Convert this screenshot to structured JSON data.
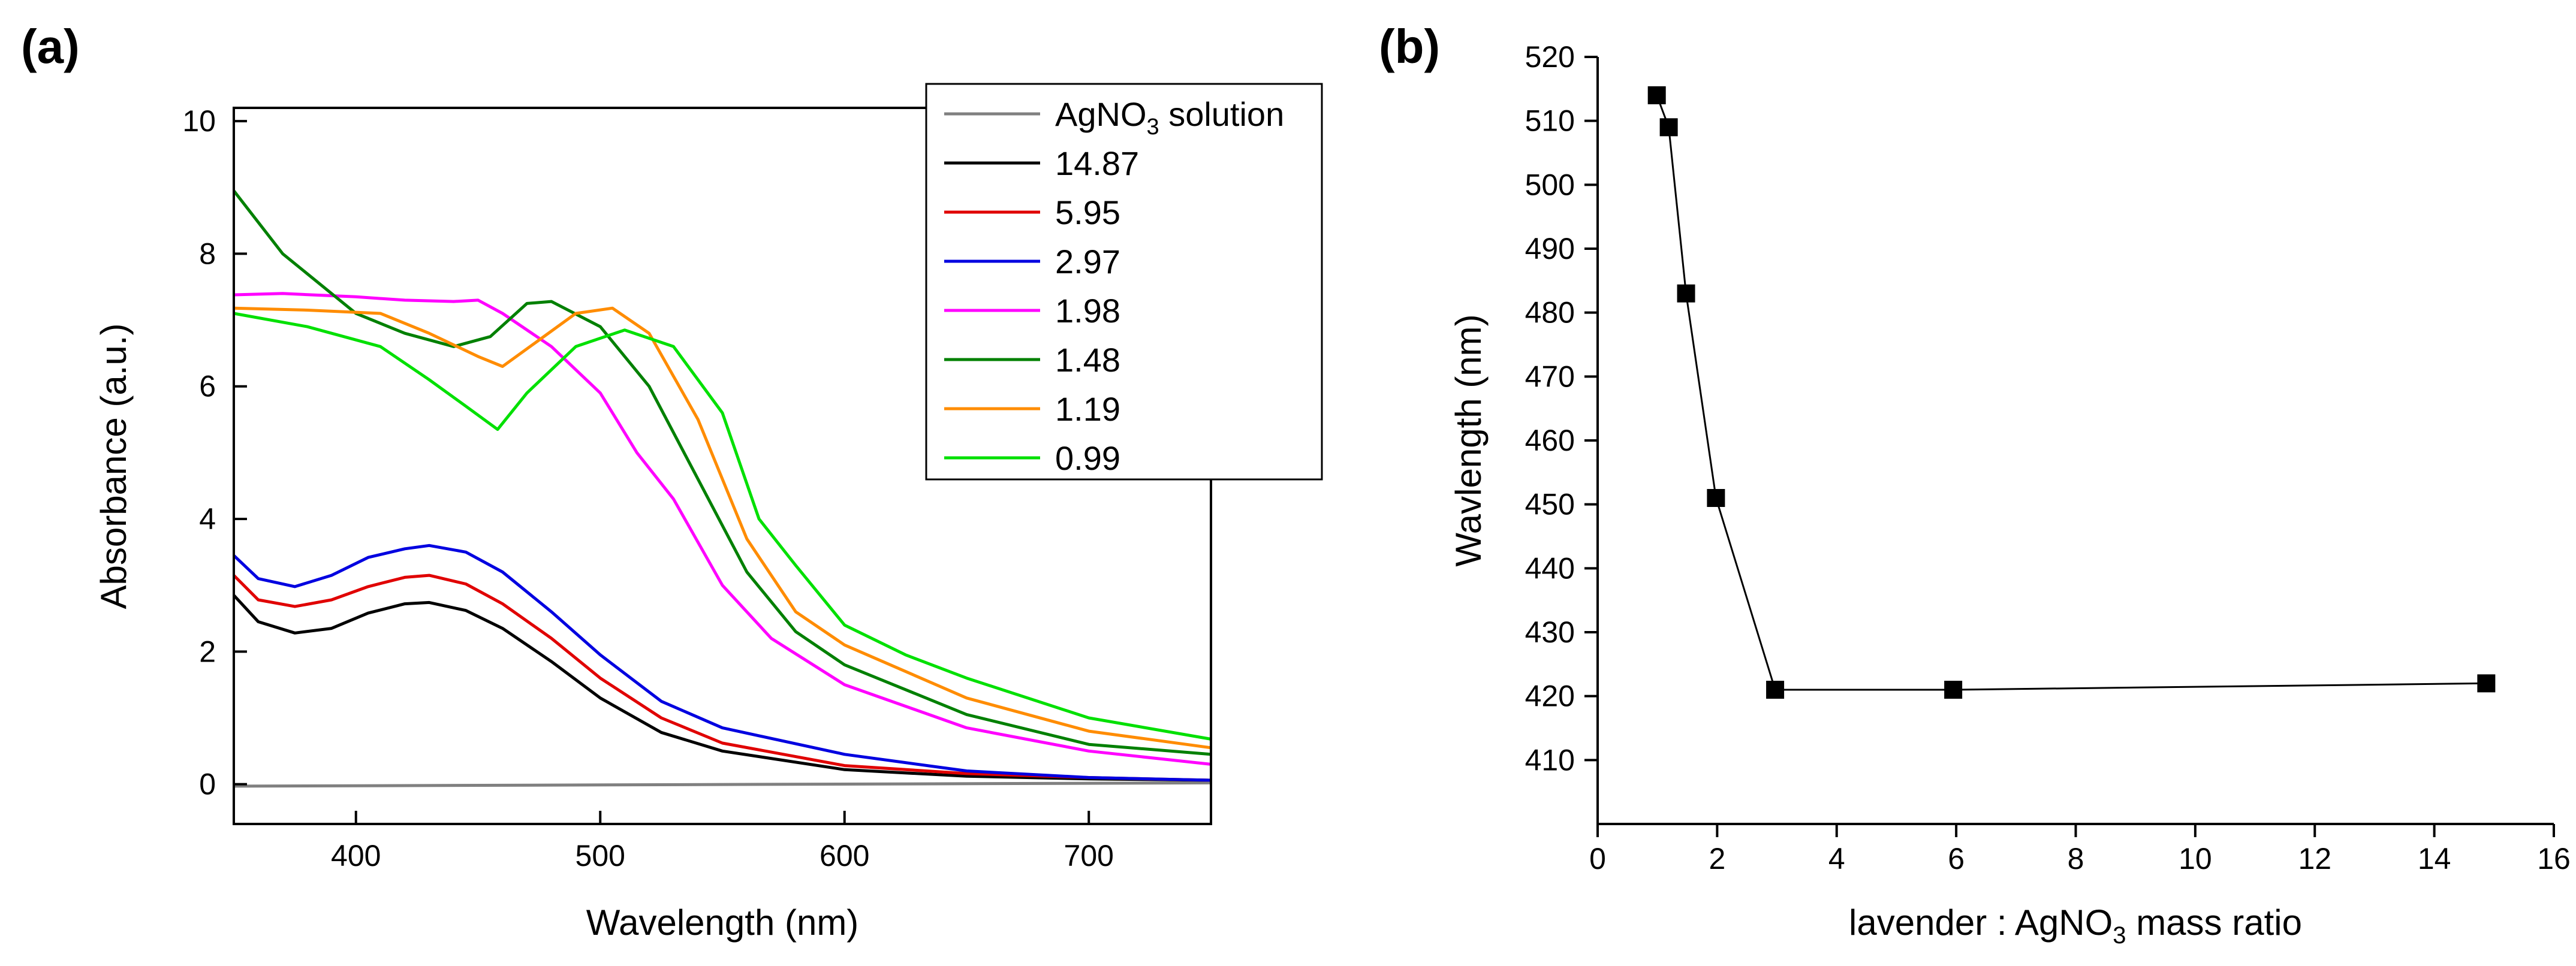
{
  "chart_data": [
    {
      "panel_label": "(a)",
      "type": "line",
      "xlabel": "Wavelength (nm)",
      "ylabel": "Absorbance (a.u.)",
      "xlim": [
        350,
        750
      ],
      "ylim": [
        -0.6,
        10.2
      ],
      "xticks": [
        400,
        500,
        600,
        700
      ],
      "yticks": [
        0,
        2,
        4,
        6,
        8,
        10
      ],
      "legend_position": "top-right",
      "series": [
        {
          "name": "AgNO₃ solution",
          "legend_main": "AgNO",
          "legend_sub": "3",
          "legend_tail": " solution",
          "color": "#808080",
          "x": [
            350,
            750
          ],
          "y": [
            -0.03,
            0.02
          ]
        },
        {
          "name": "14.87",
          "legend_main": "14.87",
          "color": "#000000",
          "x": [
            350,
            360,
            375,
            390,
            405,
            420,
            430,
            445,
            460,
            480,
            500,
            525,
            550,
            600,
            650,
            700,
            750
          ],
          "y": [
            2.85,
            2.45,
            2.28,
            2.35,
            2.58,
            2.72,
            2.74,
            2.62,
            2.35,
            1.85,
            1.3,
            0.78,
            0.5,
            0.22,
            0.12,
            0.08,
            0.06
          ]
        },
        {
          "name": "5.95",
          "legend_main": "5.95",
          "color": "#e00000",
          "x": [
            350,
            360,
            375,
            390,
            405,
            420,
            430,
            445,
            460,
            480,
            500,
            525,
            550,
            600,
            650,
            700,
            750
          ],
          "y": [
            3.15,
            2.78,
            2.68,
            2.78,
            2.98,
            3.12,
            3.15,
            3.02,
            2.72,
            2.2,
            1.6,
            1.0,
            0.62,
            0.28,
            0.16,
            0.1,
            0.06
          ]
        },
        {
          "name": "2.97",
          "legend_main": "2.97",
          "color": "#0000e0",
          "x": [
            350,
            360,
            375,
            390,
            405,
            420,
            430,
            445,
            460,
            480,
            500,
            525,
            550,
            600,
            650,
            700,
            750
          ],
          "y": [
            3.45,
            3.1,
            2.98,
            3.15,
            3.42,
            3.55,
            3.6,
            3.5,
            3.2,
            2.6,
            1.95,
            1.25,
            0.85,
            0.45,
            0.2,
            0.1,
            0.06
          ]
        },
        {
          "name": "1.98",
          "legend_main": "1.98",
          "color": "#ff00ff",
          "x": [
            350,
            370,
            400,
            420,
            440,
            450,
            460,
            480,
            500,
            515,
            530,
            550,
            570,
            600,
            650,
            700,
            750
          ],
          "y": [
            7.38,
            7.4,
            7.35,
            7.3,
            7.28,
            7.3,
            7.1,
            6.6,
            5.9,
            5.0,
            4.3,
            3.0,
            2.2,
            1.5,
            0.85,
            0.5,
            0.3
          ]
        },
        {
          "name": "1.48",
          "legend_main": "1.48",
          "color": "#008000",
          "x": [
            350,
            370,
            400,
            420,
            440,
            455,
            470,
            480,
            500,
            520,
            540,
            560,
            580,
            600,
            650,
            700,
            750
          ],
          "y": [
            8.95,
            8.0,
            7.1,
            6.8,
            6.6,
            6.75,
            7.25,
            7.28,
            6.9,
            6.0,
            4.6,
            3.2,
            2.3,
            1.8,
            1.05,
            0.6,
            0.45
          ]
        },
        {
          "name": "1.19",
          "legend_main": "1.19",
          "color": "#ff8c00",
          "x": [
            350,
            380,
            410,
            430,
            450,
            460,
            475,
            490,
            505,
            520,
            540,
            560,
            580,
            600,
            650,
            700,
            750
          ],
          "y": [
            7.18,
            7.15,
            7.1,
            6.8,
            6.45,
            6.3,
            6.7,
            7.1,
            7.18,
            6.8,
            5.5,
            3.7,
            2.6,
            2.1,
            1.3,
            0.8,
            0.55
          ]
        },
        {
          "name": "0.99",
          "legend_main": "0.99",
          "color": "#00e000",
          "x": [
            350,
            380,
            410,
            430,
            445,
            458,
            470,
            490,
            510,
            530,
            550,
            565,
            580,
            600,
            625,
            650,
            700,
            750
          ],
          "y": [
            7.1,
            6.9,
            6.6,
            6.1,
            5.7,
            5.35,
            5.9,
            6.6,
            6.85,
            6.6,
            5.6,
            4.0,
            3.3,
            2.4,
            1.95,
            1.6,
            1.0,
            0.68
          ]
        }
      ]
    },
    {
      "panel_label": "(b)",
      "type": "scatter",
      "xlabel_main": "lavender : AgNO",
      "xlabel_sub": "3",
      "xlabel_tail": " mass ratio",
      "ylabel": "Wavlength (nm)",
      "xlim": [
        0,
        16
      ],
      "ylim": [
        400,
        520
      ],
      "xticks": [
        0,
        2,
        4,
        6,
        8,
        10,
        12,
        14,
        16
      ],
      "yticks": [
        410,
        420,
        430,
        440,
        450,
        460,
        470,
        480,
        490,
        500,
        510,
        520
      ],
      "marker": "square",
      "connected": true,
      "x": [
        0.99,
        1.19,
        1.48,
        1.98,
        2.97,
        5.95,
        14.87
      ],
      "y": [
        514,
        509,
        483,
        451,
        421,
        421,
        422
      ]
    }
  ]
}
